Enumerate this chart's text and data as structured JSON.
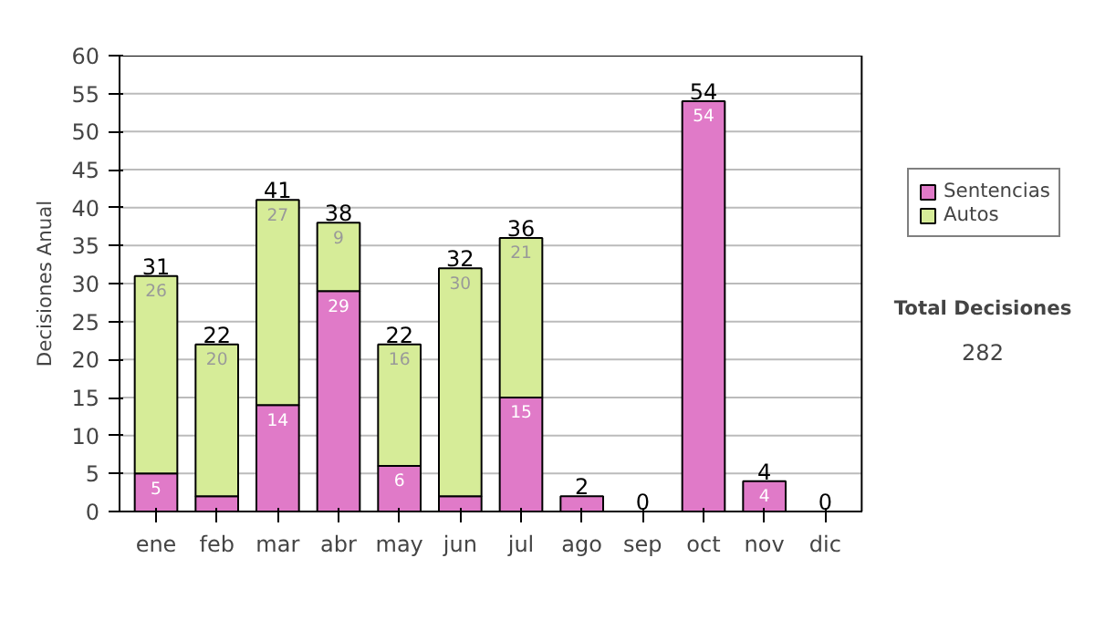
{
  "chart_data": {
    "type": "bar",
    "stacked": true,
    "ylabel": "Decisiones Anual",
    "categories": [
      "ene",
      "feb",
      "mar",
      "abr",
      "may",
      "jun",
      "jul",
      "ago",
      "sep",
      "oct",
      "nov",
      "dic"
    ],
    "series": [
      {
        "name": "Sentencias",
        "color": "#e07ac8",
        "values": [
          5,
          2,
          14,
          29,
          6,
          2,
          15,
          2,
          0,
          54,
          4,
          0
        ],
        "value_labels": [
          "5",
          null,
          "14",
          "29",
          "6",
          null,
          "15",
          null,
          null,
          "54",
          "4",
          null
        ]
      },
      {
        "name": "Autos",
        "color": "#d6ec98",
        "values": [
          26,
          20,
          27,
          9,
          16,
          30,
          21,
          0,
          0,
          0,
          0,
          0
        ],
        "value_labels": [
          "26",
          "20",
          "27",
          "9",
          "16",
          "30",
          "21",
          null,
          null,
          null,
          null,
          null
        ]
      }
    ],
    "totals": [
      "31",
      "22",
      "41",
      "38",
      "22",
      "32",
      "36",
      "2",
      "0",
      "54",
      "4",
      "0"
    ],
    "ylim": [
      0,
      60
    ],
    "yticks": [
      0,
      5,
      10,
      15,
      20,
      25,
      30,
      35,
      40,
      45,
      50,
      55,
      60
    ],
    "grid": "y",
    "legend": "right",
    "annotations": [
      "Total Decisiones",
      "282"
    ]
  }
}
